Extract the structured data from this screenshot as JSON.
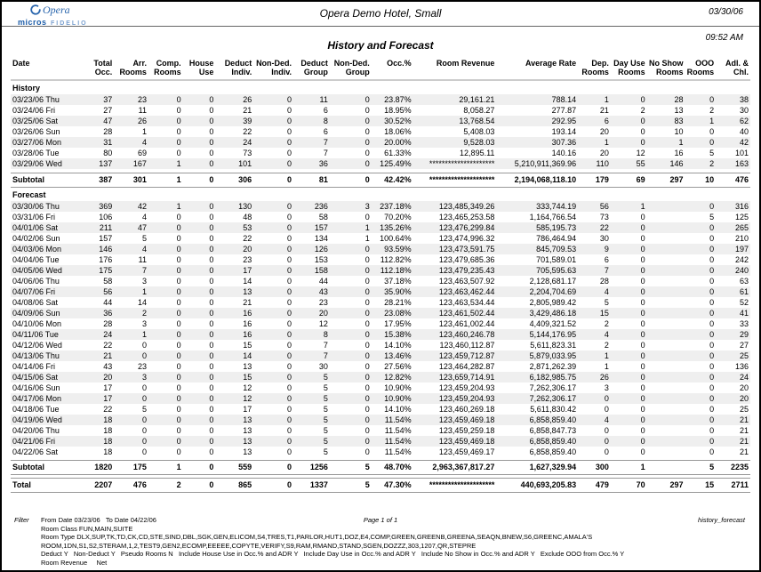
{
  "header": {
    "logo": {
      "brand": "Opera",
      "sub_brand": "micros",
      "sub_brand2": "FIDELIO"
    },
    "hotel_name": "Opera Demo Hotel, Small",
    "date": "03/30/06",
    "time": "09:52 AM",
    "report_title": "History and Forecast",
    "brand_color": "#2a66ad"
  },
  "table": {
    "columns": [
      "Date",
      "Total\nOcc.",
      "Arr.\nRooms",
      "Comp.\nRooms",
      "House\nUse",
      "Deduct\nIndiv.",
      "Non-Ded.\nIndiv.",
      "Deduct\nGroup",
      "Non-Ded.\nGroup",
      "Occ.%",
      "Room Revenue",
      "Average Rate",
      "Dep.\nRooms",
      "Day Use\nRooms",
      "No Show\nRooms",
      "OOO\nRooms",
      "Adl. &\nChl."
    ],
    "sections": [
      {
        "label": "History",
        "rows": [
          [
            "03/23/06 Thu",
            "37",
            "23",
            "0",
            "0",
            "26",
            "0",
            "11",
            "0",
            "23.87%",
            "29,161.21",
            "788.14",
            "1",
            "0",
            "28",
            "0",
            "38"
          ],
          [
            "03/24/06 Fri",
            "27",
            "11",
            "0",
            "0",
            "21",
            "0",
            "6",
            "0",
            "18.95%",
            "8,058.27",
            "277.87",
            "21",
            "2",
            "13",
            "2",
            "30"
          ],
          [
            "03/25/06 Sat",
            "47",
            "26",
            "0",
            "0",
            "39",
            "0",
            "8",
            "0",
            "30.52%",
            "13,768.54",
            "292.95",
            "6",
            "0",
            "83",
            "1",
            "62"
          ],
          [
            "03/26/06 Sun",
            "28",
            "1",
            "0",
            "0",
            "22",
            "0",
            "6",
            "0",
            "18.06%",
            "5,408.03",
            "193.14",
            "20",
            "0",
            "10",
            "0",
            "40"
          ],
          [
            "03/27/06 Mon",
            "31",
            "4",
            "0",
            "0",
            "24",
            "0",
            "7",
            "0",
            "20.00%",
            "9,528.03",
            "307.36",
            "1",
            "0",
            "1",
            "0",
            "42"
          ],
          [
            "03/28/06 Tue",
            "80",
            "69",
            "0",
            "0",
            "73",
            "0",
            "7",
            "0",
            "61.33%",
            "12,895.11",
            "140.16",
            "20",
            "12",
            "16",
            "5",
            "101"
          ],
          [
            "03/29/06 Wed",
            "137",
            "167",
            "1",
            "0",
            "101",
            "0",
            "36",
            "0",
            "125.49%",
            "*********************",
            "5,210,911,369.96",
            "110",
            "55",
            "146",
            "2",
            "163"
          ]
        ],
        "subtotal_row": [
          "Subtotal",
          "387",
          "301",
          "1",
          "0",
          "306",
          "0",
          "81",
          "0",
          "42.42%",
          "*********************",
          "2,194,068,118.10",
          "179",
          "69",
          "297",
          "10",
          "476"
        ]
      },
      {
        "label": "Forecast",
        "rows": [
          [
            "03/30/06 Thu",
            "369",
            "42",
            "1",
            "0",
            "130",
            "0",
            "236",
            "3",
            "237.18%",
            "123,485,349.26",
            "333,744.19",
            "56",
            "1",
            "",
            "0",
            "316"
          ],
          [
            "03/31/06 Fri",
            "106",
            "4",
            "0",
            "0",
            "48",
            "0",
            "58",
            "0",
            "70.20%",
            "123,465,253.58",
            "1,164,766.54",
            "73",
            "0",
            "",
            "5",
            "125"
          ],
          [
            "04/01/06 Sat",
            "211",
            "47",
            "0",
            "0",
            "53",
            "0",
            "157",
            "1",
            "135.26%",
            "123,476,299.84",
            "585,195.73",
            "22",
            "0",
            "",
            "0",
            "265"
          ],
          [
            "04/02/06 Sun",
            "157",
            "5",
            "0",
            "0",
            "22",
            "0",
            "134",
            "1",
            "100.64%",
            "123,474,996.32",
            "786,464.94",
            "30",
            "0",
            "",
            "0",
            "210"
          ],
          [
            "04/03/06 Mon",
            "146",
            "4",
            "0",
            "0",
            "20",
            "0",
            "126",
            "0",
            "93.59%",
            "123,473,591.75",
            "845,709.53",
            "9",
            "0",
            "",
            "0",
            "197"
          ],
          [
            "04/04/06 Tue",
            "176",
            "11",
            "0",
            "0",
            "23",
            "0",
            "153",
            "0",
            "112.82%",
            "123,479,685.36",
            "701,589.01",
            "6",
            "0",
            "",
            "0",
            "242"
          ],
          [
            "04/05/06 Wed",
            "175",
            "7",
            "0",
            "0",
            "17",
            "0",
            "158",
            "0",
            "112.18%",
            "123,479,235.43",
            "705,595.63",
            "7",
            "0",
            "",
            "0",
            "240"
          ],
          [
            "04/06/06 Thu",
            "58",
            "3",
            "0",
            "0",
            "14",
            "0",
            "44",
            "0",
            "37.18%",
            "123,463,507.92",
            "2,128,681.17",
            "28",
            "0",
            "",
            "0",
            "63"
          ],
          [
            "04/07/06 Fri",
            "56",
            "1",
            "0",
            "0",
            "13",
            "0",
            "43",
            "0",
            "35.90%",
            "123,463,462.44",
            "2,204,704.69",
            "4",
            "0",
            "",
            "0",
            "61"
          ],
          [
            "04/08/06 Sat",
            "44",
            "14",
            "0",
            "0",
            "21",
            "0",
            "23",
            "0",
            "28.21%",
            "123,463,534.44",
            "2,805,989.42",
            "5",
            "0",
            "",
            "0",
            "52"
          ],
          [
            "04/09/06 Sun",
            "36",
            "2",
            "0",
            "0",
            "16",
            "0",
            "20",
            "0",
            "23.08%",
            "123,461,502.44",
            "3,429,486.18",
            "15",
            "0",
            "",
            "0",
            "41"
          ],
          [
            "04/10/06 Mon",
            "28",
            "3",
            "0",
            "0",
            "16",
            "0",
            "12",
            "0",
            "17.95%",
            "123,461,002.44",
            "4,409,321.52",
            "2",
            "0",
            "",
            "0",
            "33"
          ],
          [
            "04/11/06 Tue",
            "24",
            "1",
            "0",
            "0",
            "16",
            "0",
            "8",
            "0",
            "15.38%",
            "123,460,246.78",
            "5,144,176.95",
            "4",
            "0",
            "",
            "0",
            "29"
          ],
          [
            "04/12/06 Wed",
            "22",
            "0",
            "0",
            "0",
            "15",
            "0",
            "7",
            "0",
            "14.10%",
            "123,460,112.87",
            "5,611,823.31",
            "2",
            "0",
            "",
            "0",
            "27"
          ],
          [
            "04/13/06 Thu",
            "21",
            "0",
            "0",
            "0",
            "14",
            "0",
            "7",
            "0",
            "13.46%",
            "123,459,712.87",
            "5,879,033.95",
            "1",
            "0",
            "",
            "0",
            "25"
          ],
          [
            "04/14/06 Fri",
            "43",
            "23",
            "0",
            "0",
            "13",
            "0",
            "30",
            "0",
            "27.56%",
            "123,464,282.87",
            "2,871,262.39",
            "1",
            "0",
            "",
            "0",
            "136"
          ],
          [
            "04/15/06 Sat",
            "20",
            "3",
            "0",
            "0",
            "15",
            "0",
            "5",
            "0",
            "12.82%",
            "123,659,714.91",
            "6,182,985.75",
            "26",
            "0",
            "",
            "0",
            "24"
          ],
          [
            "04/16/06 Sun",
            "17",
            "0",
            "0",
            "0",
            "12",
            "0",
            "5",
            "0",
            "10.90%",
            "123,459,204.93",
            "7,262,306.17",
            "3",
            "0",
            "",
            "0",
            "20"
          ],
          [
            "04/17/06 Mon",
            "17",
            "0",
            "0",
            "0",
            "12",
            "0",
            "5",
            "0",
            "10.90%",
            "123,459,204.93",
            "7,262,306.17",
            "0",
            "0",
            "",
            "0",
            "20"
          ],
          [
            "04/18/06 Tue",
            "22",
            "5",
            "0",
            "0",
            "17",
            "0",
            "5",
            "0",
            "14.10%",
            "123,460,269.18",
            "5,611,830.42",
            "0",
            "0",
            "",
            "0",
            "25"
          ],
          [
            "04/19/06 Wed",
            "18",
            "0",
            "0",
            "0",
            "13",
            "0",
            "5",
            "0",
            "11.54%",
            "123,459,469.18",
            "6,858,859.40",
            "4",
            "0",
            "",
            "0",
            "21"
          ],
          [
            "04/20/06 Thu",
            "18",
            "0",
            "0",
            "0",
            "13",
            "0",
            "5",
            "0",
            "11.54%",
            "123,459,259.18",
            "6,858,847.73",
            "0",
            "0",
            "",
            "0",
            "21"
          ],
          [
            "04/21/06 Fri",
            "18",
            "0",
            "0",
            "0",
            "13",
            "0",
            "5",
            "0",
            "11.54%",
            "123,459,469.18",
            "6,858,859.40",
            "0",
            "0",
            "",
            "0",
            "21"
          ],
          [
            "04/22/06 Sat",
            "18",
            "0",
            "0",
            "0",
            "13",
            "0",
            "5",
            "0",
            "11.54%",
            "123,459,469.17",
            "6,858,859.40",
            "0",
            "0",
            "",
            "0",
            "21"
          ]
        ],
        "subtotal_row": [
          "Subtotal",
          "1820",
          "175",
          "1",
          "0",
          "559",
          "0",
          "1256",
          "5",
          "48.70%",
          "2,963,367,817.27",
          "1,627,329.94",
          "300",
          "1",
          "",
          "5",
          "2235"
        ]
      }
    ],
    "total_row": [
      "Total",
      "2207",
      "476",
      "2",
      "0",
      "865",
      "0",
      "1337",
      "5",
      "47.30%",
      "*********************",
      "440,693,205.83",
      "479",
      "70",
      "297",
      "15",
      "2711"
    ]
  },
  "footer": {
    "filter_label": "Filter",
    "from_to": "From Date 03/23/06   To Date 04/22/06",
    "page": "Page 1 of 1",
    "report_id": "history_forecast",
    "filter_lines": [
      "Room Class FUN,MAIN,SUITE",
      "Room Type DLX,SUP,TK,TD,CK,CD,STE,SIND,DBL,SGK,GEN,ELICOM,S4,TRES,T1,PARLOR,HUT1,DOZ,E4,COMP,GREEN,GREENB,GREENA,SEAQN,BNEW,S6,GREENC,AMALA'S",
      "ROOM,1DN,S1,S2,STERAM,1,2,TEST9,GEN2,ECOMP,EEEEE,COPYTE,VERIFY,S9,RAM,RMAND,STAND,SGEN,DOZZZ,303,1207,QR,STEPRE",
      "Deduct Y   Non-Deduct Y   Pseudo Rooms N   Include House Use in Occ.% and ADR Y   Include Day Use in Occ.% and ADR Y   Include No Show in Occ.% and ADR Y   Exclude OOO from Occ.% Y",
      "Room Revenue     Net"
    ]
  }
}
